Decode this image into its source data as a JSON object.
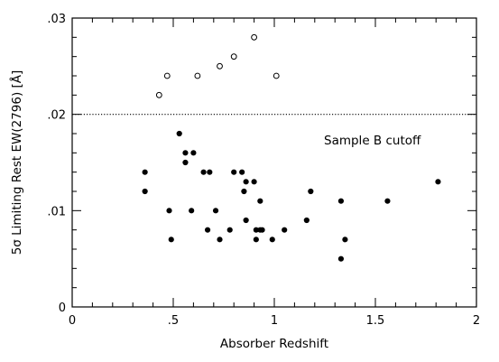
{
  "chart_data": {
    "type": "scatter",
    "xlabel": "Absorber Redshift",
    "ylabel": "5σ Limiting Rest EW(2796) [Å]",
    "xlim": [
      0,
      2
    ],
    "ylim": [
      0,
      0.03
    ],
    "x_ticks": [
      {
        "value": 0,
        "label": "0"
      },
      {
        "value": 0.5,
        "label": ".5"
      },
      {
        "value": 1,
        "label": "1"
      },
      {
        "value": 1.5,
        "label": "1.5"
      },
      {
        "value": 2,
        "label": "2"
      }
    ],
    "y_ticks": [
      {
        "value": 0,
        "label": "0"
      },
      {
        "value": 0.01,
        "label": ".01"
      },
      {
        "value": 0.02,
        "label": ".02"
      },
      {
        "value": 0.03,
        "label": ".03"
      }
    ],
    "x_minor_step": 0.1,
    "y_minor_step": 0.002,
    "grid": false,
    "cutoff": {
      "y": 0.02,
      "style": "dotted",
      "label": "Sample B cutoff"
    },
    "series": [
      {
        "marker": "open-circle",
        "points": [
          [
            0.43,
            0.022
          ],
          [
            0.47,
            0.024
          ],
          [
            0.62,
            0.024
          ],
          [
            0.73,
            0.025
          ],
          [
            0.8,
            0.026
          ],
          [
            0.9,
            0.028
          ],
          [
            1.01,
            0.024
          ]
        ]
      },
      {
        "marker": "filled-circle",
        "points": [
          [
            0.36,
            0.014
          ],
          [
            0.36,
            0.012
          ],
          [
            0.48,
            0.01
          ],
          [
            0.49,
            0.007
          ],
          [
            0.53,
            0.018
          ],
          [
            0.56,
            0.016
          ],
          [
            0.56,
            0.015
          ],
          [
            0.59,
            0.01
          ],
          [
            0.6,
            0.016
          ],
          [
            0.65,
            0.014
          ],
          [
            0.67,
            0.008
          ],
          [
            0.68,
            0.014
          ],
          [
            0.71,
            0.01
          ],
          [
            0.73,
            0.007
          ],
          [
            0.78,
            0.008
          ],
          [
            0.8,
            0.014
          ],
          [
            0.84,
            0.014
          ],
          [
            0.85,
            0.012
          ],
          [
            0.86,
            0.013
          ],
          [
            0.86,
            0.009
          ],
          [
            0.9,
            0.013
          ],
          [
            0.91,
            0.008
          ],
          [
            0.91,
            0.007
          ],
          [
            0.93,
            0.008
          ],
          [
            0.93,
            0.011
          ],
          [
            0.94,
            0.008
          ],
          [
            0.99,
            0.007
          ],
          [
            1.05,
            0.008
          ],
          [
            1.16,
            0.009
          ],
          [
            1.18,
            0.012
          ],
          [
            1.33,
            0.011
          ],
          [
            1.33,
            0.005
          ],
          [
            1.35,
            0.007
          ],
          [
            1.56,
            0.011
          ],
          [
            1.81,
            0.013
          ]
        ]
      }
    ]
  }
}
